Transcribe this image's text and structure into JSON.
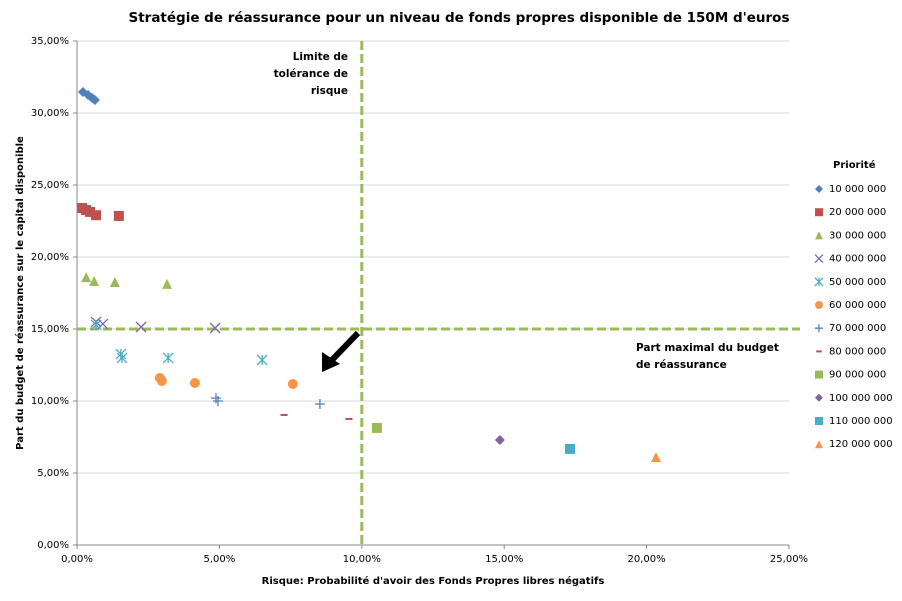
{
  "chart_data": {
    "type": "scatter",
    "title": "Stratégie de réassurance pour un niveau de fonds propres disponible de 150M d'euros",
    "x_label": "Risque: Probabilité d'avoir des Fonds Propres libres négatifs",
    "y_label": "Part du budget de réassurance sur le capital disponible",
    "legend_title": "Priorité",
    "legend": "right",
    "grid": true,
    "xlim": [
      0,
      25
    ],
    "ylim": [
      0,
      35
    ],
    "xticks": [
      {
        "value": 0,
        "label": "0,00%"
      },
      {
        "value": 5,
        "label": "5,00%"
      },
      {
        "value": 10,
        "label": "10,00%"
      },
      {
        "value": 15,
        "label": "15,00%"
      },
      {
        "value": 20,
        "label": "20,00%"
      },
      {
        "value": 25,
        "label": "25,00%"
      }
    ],
    "yticks": [
      {
        "value": 0,
        "label": "0,00%"
      },
      {
        "value": 5,
        "label": "5,00%"
      },
      {
        "value": 10,
        "label": "10,00%"
      },
      {
        "value": 15,
        "label": "15,00%"
      },
      {
        "value": 20,
        "label": "20,00%"
      },
      {
        "value": 25,
        "label": "25,00%"
      },
      {
        "value": 30,
        "label": "30,00%"
      },
      {
        "value": 35,
        "label": "35,00%"
      }
    ],
    "reference_lines": {
      "x": 10,
      "y": 15,
      "color": "#9bbb59"
    },
    "annotations": [
      {
        "lines": [
          "Limite de",
          "tolérance de",
          "risque"
        ]
      },
      {
        "lines": [
          "Part maximal du budget",
          "de réassurance"
        ]
      }
    ],
    "series": [
      {
        "name": "10 000 000",
        "color": "#4f81bd",
        "marker": "diamond",
        "x": [
          0.21,
          0.39,
          0.53,
          0.63
        ],
        "values": [
          31.46,
          31.25,
          31.04,
          30.9
        ]
      },
      {
        "name": "20 000 000",
        "color": "#c0504d",
        "marker": "square",
        "x": [
          0.18,
          0.32,
          0.46,
          0.67,
          1.47
        ],
        "values": [
          23.4,
          23.26,
          23.13,
          22.9,
          22.85
        ]
      },
      {
        "name": "30 000 000",
        "color": "#9bbb59",
        "marker": "triangle",
        "x": [
          0.32,
          0.6,
          1.33,
          3.16
        ],
        "values": [
          18.6,
          18.33,
          18.26,
          18.13
        ]
      },
      {
        "name": "40 000 000",
        "color": "#8064a2",
        "marker": "x",
        "x": [
          0.67,
          0.91,
          2.25,
          4.85
        ],
        "values": [
          15.49,
          15.35,
          15.14,
          15.07
        ]
      },
      {
        "name": "50 000 000",
        "color": "#4bacc6",
        "marker": "asterisk",
        "x": [
          0.67,
          1.54,
          1.58,
          3.2,
          6.5
        ],
        "values": [
          15.28,
          13.26,
          12.99,
          12.99,
          12.85
        ]
      },
      {
        "name": "60 000 000",
        "color": "#f79646",
        "marker": "circle",
        "x": [
          2.91,
          2.98,
          4.14,
          7.58
        ],
        "values": [
          11.6,
          11.39,
          11.25,
          11.18
        ]
      },
      {
        "name": "70 000 000",
        "color": "#4f81bd",
        "marker": "plus",
        "x": [
          4.88,
          4.95,
          8.53
        ],
        "values": [
          10.2,
          10.0,
          9.79
        ]
      },
      {
        "name": "80 000 000",
        "color": "#c0504d",
        "marker": "dash",
        "x": [
          7.27,
          9.55
        ],
        "values": [
          9.03,
          8.75
        ]
      },
      {
        "name": "90 000 000",
        "color": "#9bbb59",
        "marker": "square",
        "x": [
          10.53
        ],
        "values": [
          8.13
        ]
      },
      {
        "name": "100 000 000",
        "color": "#8064a2",
        "marker": "diamond",
        "x": [
          14.85
        ],
        "values": [
          7.29
        ]
      },
      {
        "name": "110 000 000",
        "color": "#4bacc6",
        "marker": "square",
        "x": [
          17.31
        ],
        "values": [
          6.67
        ]
      },
      {
        "name": "120 000 000",
        "color": "#f79646",
        "marker": "triangle",
        "x": [
          20.33
        ],
        "values": [
          6.11
        ]
      }
    ]
  }
}
